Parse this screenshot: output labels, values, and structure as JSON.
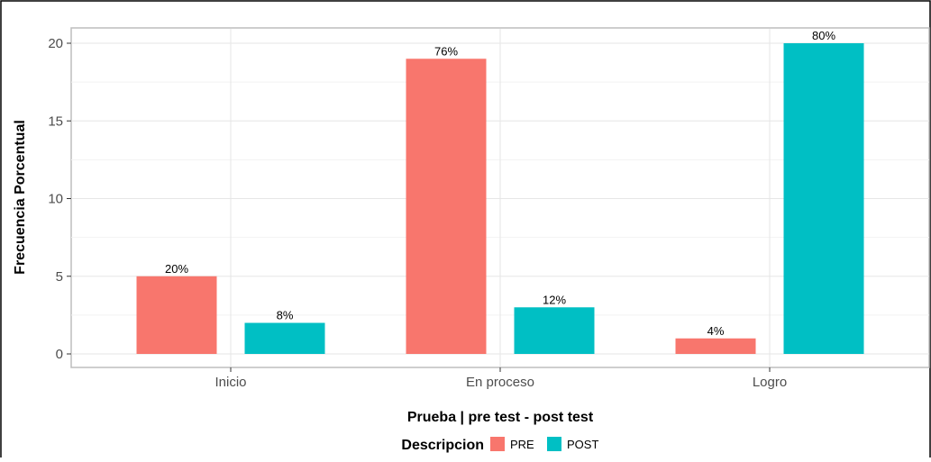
{
  "chart_data": {
    "type": "bar",
    "title": "",
    "xlabel": "Prueba | pre test - post test",
    "ylabel": "Frecuencia Porcentual",
    "categories": [
      "Inicio",
      "En proceso",
      "Logro"
    ],
    "ylim": [
      0,
      20
    ],
    "yticks": [
      0,
      5,
      10,
      15,
      20
    ],
    "grid": true,
    "series": [
      {
        "name": "PRE",
        "color": "#F8766D",
        "values": [
          5,
          19,
          1
        ],
        "labels": [
          "20%",
          "76%",
          "4%"
        ]
      },
      {
        "name": "POST",
        "color": "#00BFC4",
        "values": [
          2,
          3,
          20
        ],
        "labels": [
          "8%",
          "12%",
          "80%"
        ]
      }
    ],
    "legend": {
      "title": "Descripcion",
      "position": "bottom"
    }
  }
}
